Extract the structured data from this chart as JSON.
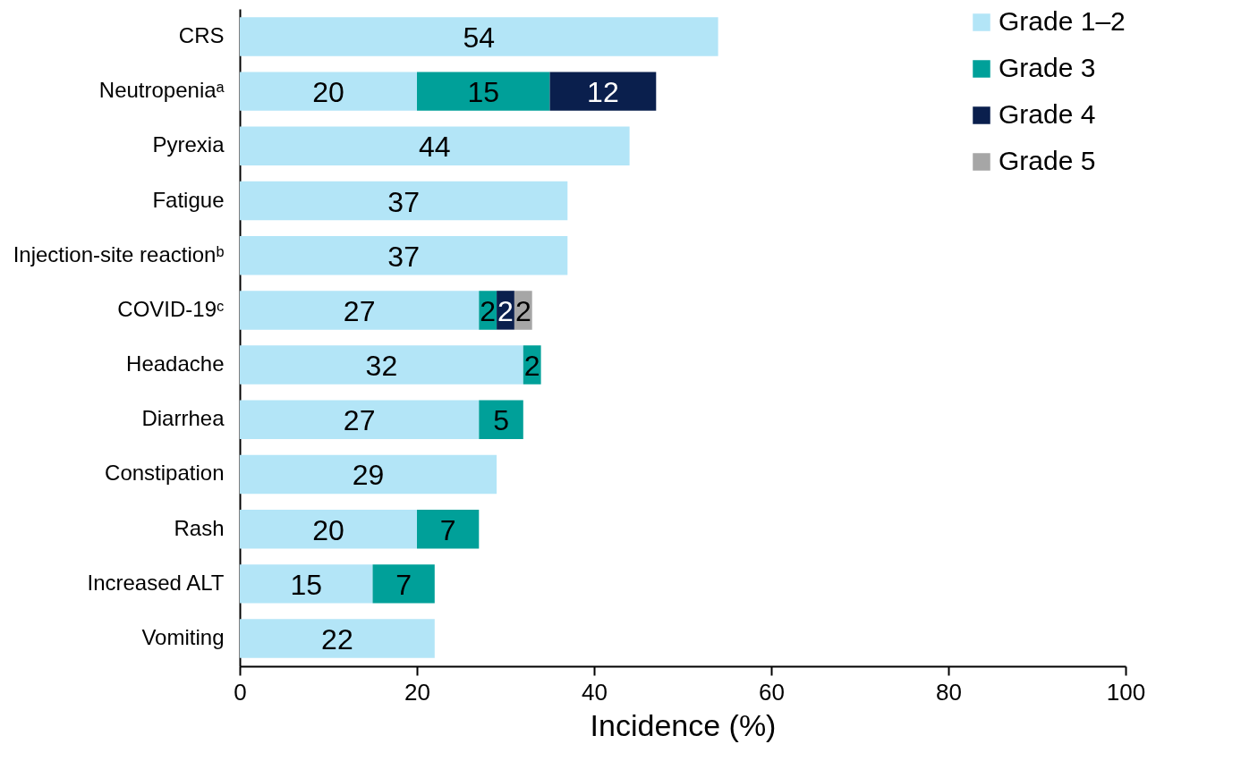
{
  "chart_data": {
    "type": "bar",
    "orientation": "horizontal",
    "stacked": true,
    "data_labels": true,
    "legend": "top right",
    "grid": false,
    "xlabel": "Incidence (%)",
    "xlim": [
      0,
      100
    ],
    "xticks": [
      0,
      20,
      40,
      60,
      80,
      100
    ],
    "categories": [
      "CRS",
      "Neutropeniaᵃ",
      "Pyrexia",
      "Fatigue",
      "Injection-site reactionᵇ",
      "COVID-19ᶜ",
      "Headache",
      "Diarrhea",
      "Constipation",
      "Rash",
      "Increased ALT",
      "Vomiting"
    ],
    "series": [
      {
        "name": "Grade 1–2",
        "color": "#b3e5f7",
        "values": [
          54,
          20,
          44,
          37,
          37,
          27,
          32,
          27,
          29,
          20,
          15,
          22
        ]
      },
      {
        "name": "Grade 3",
        "color": "#00a099",
        "values": [
          null,
          15,
          null,
          null,
          null,
          2,
          2,
          5,
          null,
          7,
          7,
          null
        ]
      },
      {
        "name": "Grade 4",
        "color": "#0a1f4d",
        "values": [
          null,
          12,
          null,
          null,
          null,
          2,
          null,
          null,
          null,
          null,
          null,
          null
        ]
      },
      {
        "name": "Grade 5",
        "color": "#a6a6a6",
        "values": [
          null,
          null,
          null,
          null,
          null,
          2,
          null,
          null,
          null,
          null,
          null,
          null
        ]
      }
    ]
  }
}
